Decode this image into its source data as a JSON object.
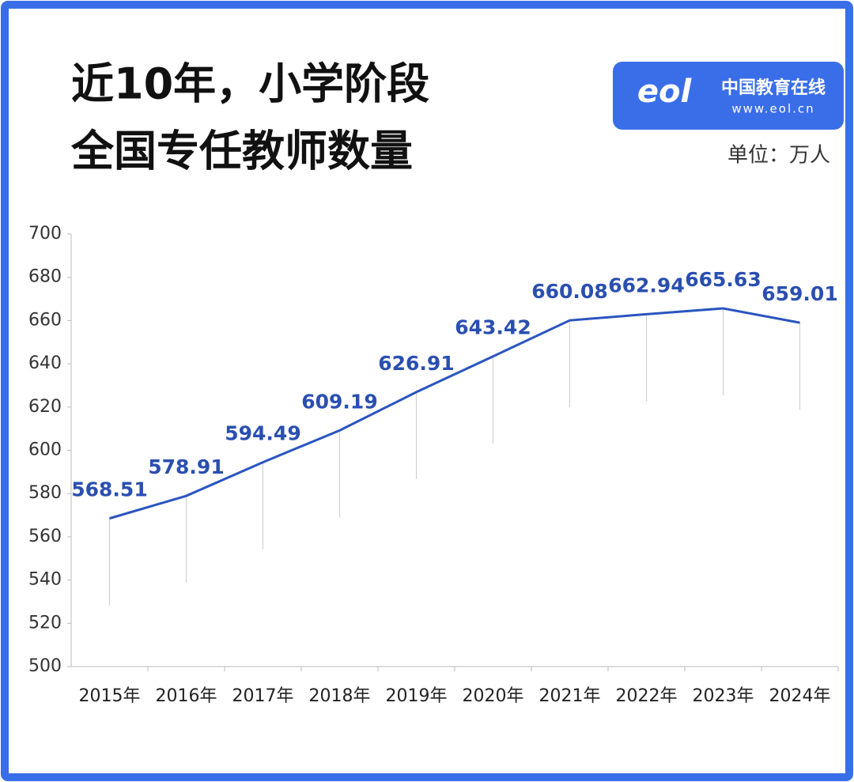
{
  "chart_data": {
    "type": "line",
    "title": [
      "近10年，小学阶段",
      "全国专任教师数量"
    ],
    "unit_label": "单位：万人",
    "categories": [
      "2015年",
      "2016年",
      "2017年",
      "2018年",
      "2019年",
      "2020年",
      "2021年",
      "2022年",
      "2023年",
      "2024年"
    ],
    "values": [
      568.51,
      578.91,
      594.49,
      609.19,
      626.91,
      643.42,
      660.08,
      662.94,
      665.63,
      659.01
    ],
    "color": "#2a55c0",
    "ylim": [
      500,
      700
    ],
    "yticks": [
      500,
      520,
      540,
      560,
      580,
      600,
      620,
      640,
      660,
      680,
      700
    ]
  },
  "logo": {
    "mark": "eol",
    "name": "中国教育在线",
    "url": "www.eol.cn"
  }
}
